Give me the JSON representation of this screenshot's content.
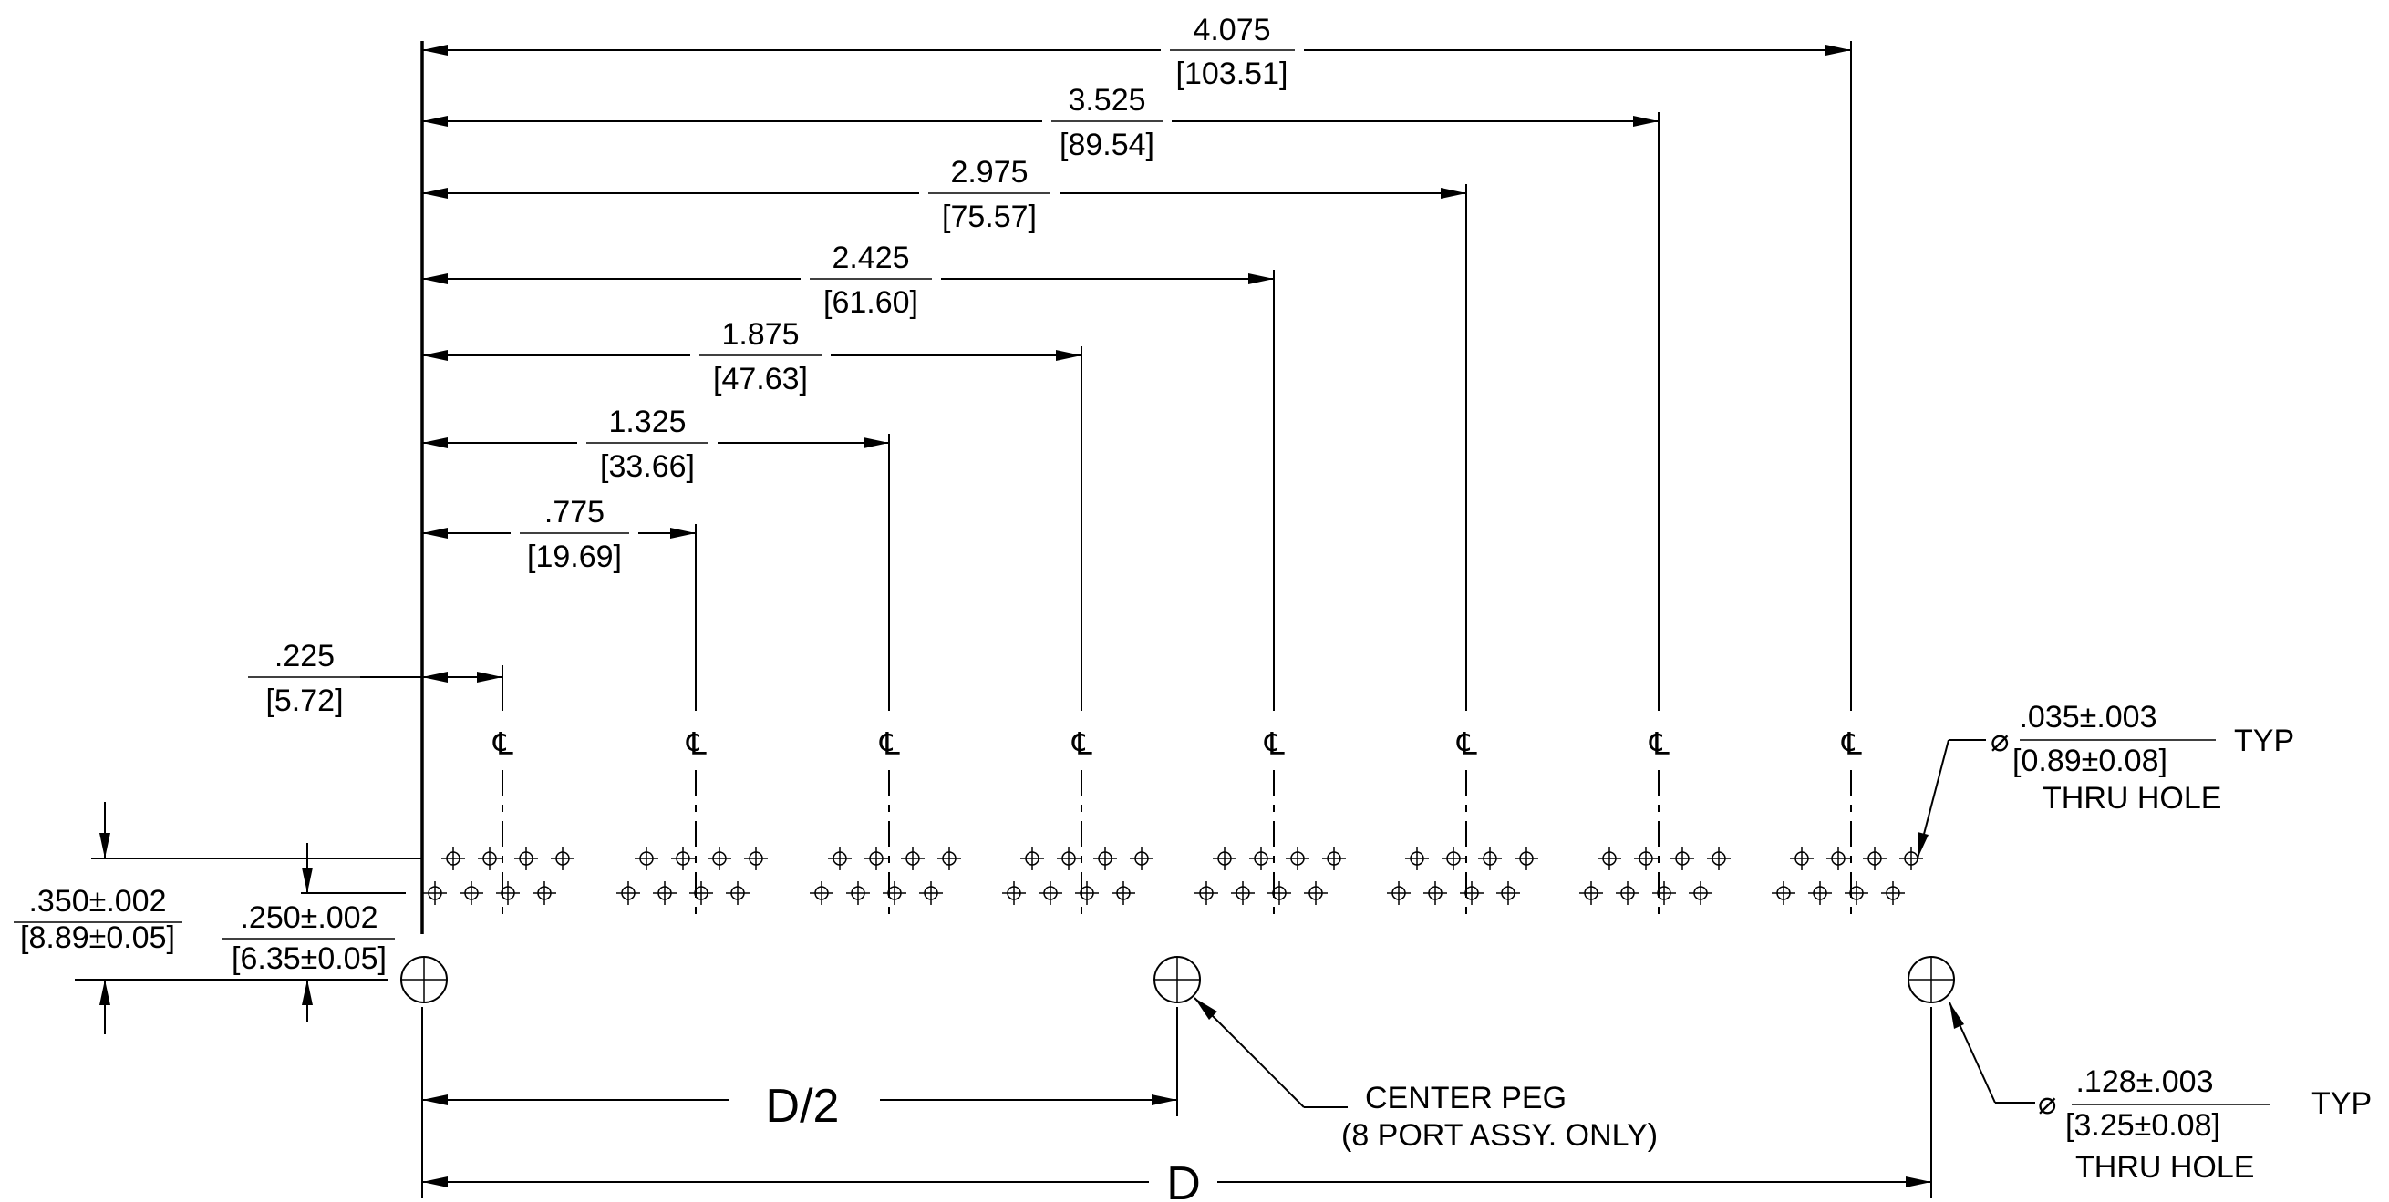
{
  "horizontal_dims": [
    {
      "inch": "4.075",
      "mm": "[103.51]"
    },
    {
      "inch": "3.525",
      "mm": "[89.54]"
    },
    {
      "inch": "2.975",
      "mm": "[75.57]"
    },
    {
      "inch": "2.425",
      "mm": "[61.60]"
    },
    {
      "inch": "1.875",
      "mm": "[47.63]"
    },
    {
      "inch": "1.325",
      "mm": "[33.66]"
    },
    {
      "inch": ".775",
      "mm": "[19.69]"
    },
    {
      "inch": ".225",
      "mm": "[5.72]"
    }
  ],
  "vertical_dims": [
    {
      "inch": ".350±.002",
      "mm": "[8.89±0.05]"
    },
    {
      "inch": ".250±.002",
      "mm": "[6.35±0.05]"
    }
  ],
  "centerline_symbol": "℄",
  "thru_hole_small": {
    "symbol": "⌀",
    "inch": ".035±.003",
    "mm": "[0.89±0.08]",
    "typ": "TYP",
    "note": "THRU HOLE"
  },
  "thru_hole_peg": {
    "symbol": "⌀",
    "inch": ".128±.003",
    "mm": "[3.25±0.08]",
    "typ": "TYP",
    "note": "THRU HOLE"
  },
  "center_peg": {
    "line1": "CENTER PEG",
    "line2": "(8 PORT ASSY. ONLY)"
  },
  "bottom_dims": {
    "half": "D/2",
    "full": "D"
  },
  "port_count": 8
}
